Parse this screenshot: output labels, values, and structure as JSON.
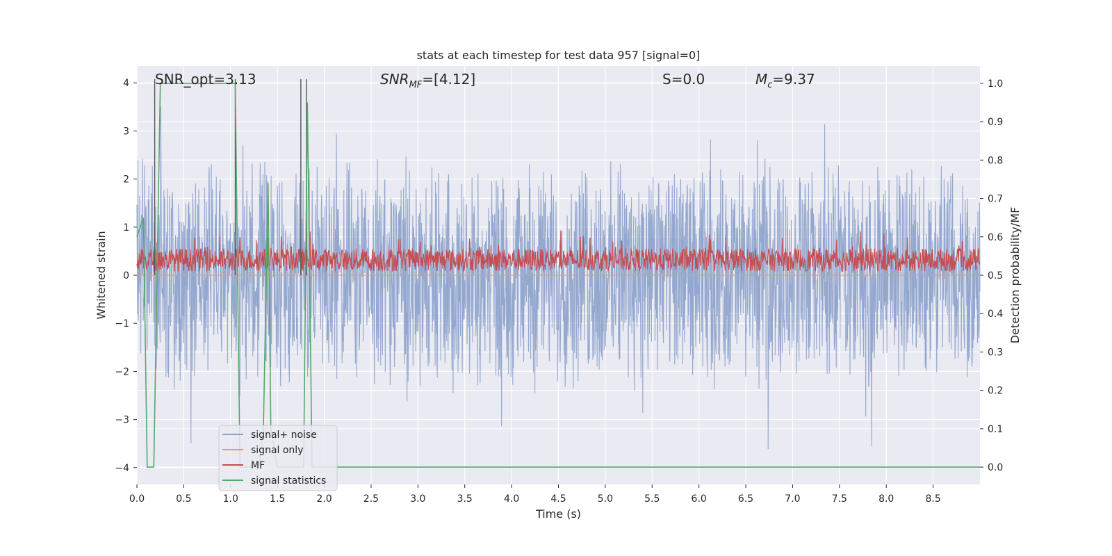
{
  "chart_data": {
    "type": "line",
    "title": "stats at each timestep for test data 957 [signal=0]",
    "xlabel": "Time (s)",
    "ylabel_left": "Whitened strain",
    "ylabel_right": "Detection probability/MF",
    "xlim": [
      0.0,
      9.0
    ],
    "ylim_left": [
      -4.35,
      4.35
    ],
    "ylim_right": [
      -0.045,
      1.045
    ],
    "x_ticks": [
      0.0,
      0.5,
      1.0,
      1.5,
      2.0,
      2.5,
      3.0,
      3.5,
      4.0,
      4.5,
      5.0,
      5.5,
      6.0,
      6.5,
      7.0,
      7.5,
      8.0,
      8.5
    ],
    "x_tick_labels": [
      "0.0",
      "0.5",
      "1.0",
      "1.5",
      "2.0",
      "2.5",
      "3.0",
      "3.5",
      "4.0",
      "4.5",
      "5.0",
      "5.5",
      "6.0",
      "6.5",
      "7.0",
      "7.5",
      "8.0",
      "8.5"
    ],
    "y_ticks_left": [
      -4,
      -3,
      -2,
      -1,
      0,
      1,
      2,
      3,
      4
    ],
    "y_tick_labels_left": [
      "−4",
      "−3",
      "−2",
      "−1",
      "0",
      "1",
      "2",
      "3",
      "4"
    ],
    "y_ticks_right": [
      0.0,
      0.1,
      0.2,
      0.3,
      0.4,
      0.5,
      0.6,
      0.7,
      0.8,
      0.9,
      1.0
    ],
    "y_tick_labels_right": [
      "0.0",
      "0.1",
      "0.2",
      "0.3",
      "0.4",
      "0.5",
      "0.6",
      "0.7",
      "0.8",
      "0.9",
      "1.0"
    ],
    "grid": true,
    "legend_placement": "lower-left",
    "annotations": [
      {
        "key": "snr_opt",
        "text": "SNR_opt=3.13",
        "italic": false
      },
      {
        "key": "snr_mf",
        "text": "SNR_MF=[4.12]",
        "italic": true
      },
      {
        "key": "s",
        "text": "S=0.0",
        "italic": true
      },
      {
        "key": "mc",
        "text": "M_c=9.37",
        "italic": true
      }
    ],
    "series": [
      {
        "name": "signal+ noise",
        "color": "#8fa4cc",
        "axis": "left",
        "envelope_peak": 3.5,
        "envelope_trough": -3.9
      },
      {
        "name": "signal only",
        "color": "#dd9a7f",
        "axis": "left"
      },
      {
        "name": "MF",
        "color": "#c44e52",
        "axis": "right",
        "baseline": 0.54,
        "range": [
          0.5,
          0.63
        ]
      },
      {
        "name": "signal statistics",
        "color": "#55a868",
        "axis": "right",
        "x": [
          0.0,
          0.07,
          0.11,
          0.18,
          0.25,
          1.05,
          1.1,
          1.2,
          1.3,
          1.35,
          1.4,
          1.43,
          1.5,
          1.7,
          1.78,
          1.82,
          1.87,
          1.92,
          2.0,
          9.0
        ],
        "values": [
          0.6,
          0.65,
          0.0,
          0.0,
          1.0,
          1.0,
          0.0,
          0.0,
          0.0,
          0.1,
          0.74,
          0.1,
          0.0,
          0.0,
          0.0,
          0.95,
          0.0,
          0.0,
          0.0,
          0.0
        ]
      }
    ],
    "vertical_lines": {
      "color": "#555555",
      "x": [
        0.19,
        1.05,
        1.75,
        1.81
      ]
    }
  }
}
